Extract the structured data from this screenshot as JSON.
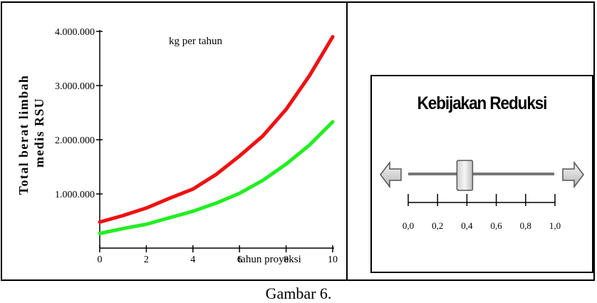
{
  "chart_data": {
    "type": "line",
    "title": "",
    "annotation": "kg per tahun",
    "xlabel": "tahun proyeksi",
    "ylabel": "Total berat limbah medis RSU",
    "xlim": [
      0,
      10
    ],
    "ylim": [
      0,
      4000000
    ],
    "x_ticks": [
      0,
      2,
      4,
      6,
      8,
      10
    ],
    "x_tick_labels": [
      "0",
      "2",
      "4",
      "6",
      "8",
      "10"
    ],
    "y_ticks": [
      1000000,
      2000000,
      3000000,
      4000000
    ],
    "y_tick_labels": [
      "1.000.000",
      "2.000.000",
      "3.000.000",
      "4.000.000"
    ],
    "grid": false,
    "x": [
      0,
      1,
      2,
      3,
      4,
      5,
      6,
      7,
      8,
      9,
      10
    ],
    "series": [
      {
        "color": "#ee1111",
        "values": [
          480000,
          600000,
          740000,
          920000,
          1090000,
          1360000,
          1700000,
          2070000,
          2560000,
          3180000,
          3900000
        ]
      },
      {
        "color": "#22ee22",
        "values": [
          270000,
          360000,
          440000,
          560000,
          680000,
          830000,
          1010000,
          1250000,
          1550000,
          1900000,
          2330000
        ]
      }
    ]
  },
  "panel": {
    "title": "Kebijakan Reduksi",
    "slider": {
      "min": 0,
      "max": 1,
      "value": 0.4,
      "ticks": [
        0,
        0.2,
        0.4,
        0.6,
        0.8,
        1
      ],
      "tick_labels": [
        "0,0",
        "0,2",
        "0,4",
        "0,6",
        "0,8",
        "1,0"
      ]
    },
    "left_arrow_icon": "arrow-left-icon",
    "right_arrow_icon": "arrow-right-icon"
  },
  "caption": "Gambar 6."
}
